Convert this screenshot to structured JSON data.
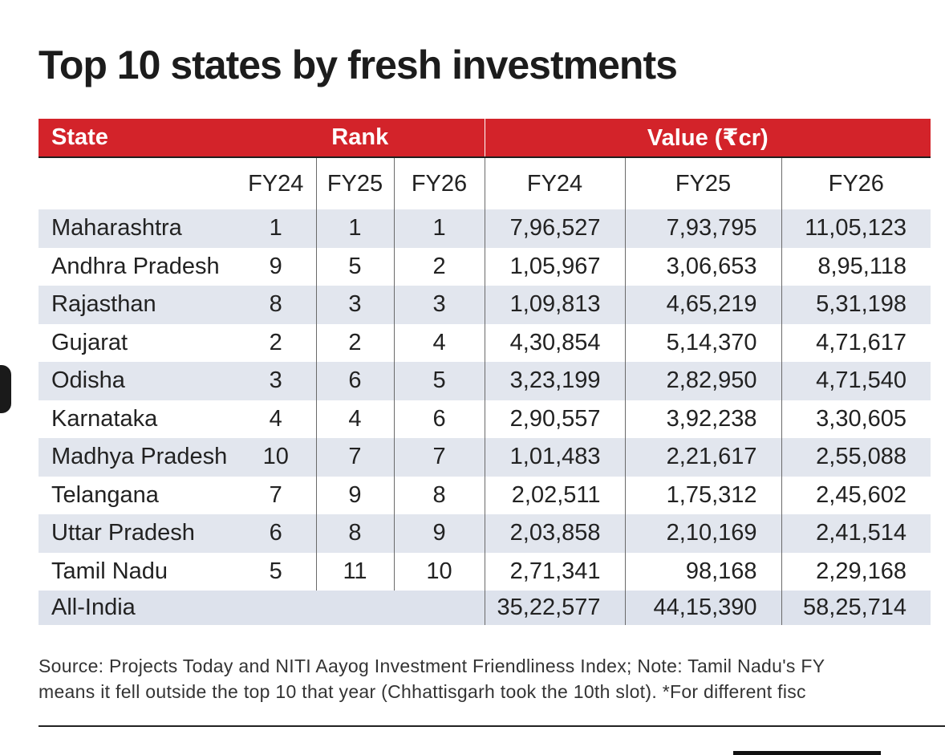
{
  "title": "Top 10 states by fresh investments",
  "table": {
    "header": {
      "state": "State",
      "rank": "Rank",
      "value": "Value (₹cr)"
    },
    "subheader": [
      "FY24",
      "FY25",
      "FY26",
      "FY24",
      "FY25",
      "FY26"
    ],
    "rows": [
      {
        "state": "Maharashtra",
        "rank": [
          "1",
          "1",
          "1"
        ],
        "value": [
          "7,96,527",
          "7,93,795",
          "11,05,123"
        ]
      },
      {
        "state": "Andhra Pradesh",
        "rank": [
          "9",
          "5",
          "2"
        ],
        "value": [
          "1,05,967",
          "3,06,653",
          "8,95,118"
        ]
      },
      {
        "state": "Rajasthan",
        "rank": [
          "8",
          "3",
          "3"
        ],
        "value": [
          "1,09,813",
          "4,65,219",
          "5,31,198"
        ]
      },
      {
        "state": "Gujarat",
        "rank": [
          "2",
          "2",
          "4"
        ],
        "value": [
          "4,30,854",
          "5,14,370",
          "4,71,617"
        ]
      },
      {
        "state": "Odisha",
        "rank": [
          "3",
          "6",
          "5"
        ],
        "value": [
          "3,23,199",
          "2,82,950",
          "4,71,540"
        ]
      },
      {
        "state": "Karnataka",
        "rank": [
          "4",
          "4",
          "6"
        ],
        "value": [
          "2,90,557",
          "3,92,238",
          "3,30,605"
        ]
      },
      {
        "state": "Madhya Pradesh",
        "rank": [
          "10",
          "7",
          "7"
        ],
        "value": [
          "1,01,483",
          "2,21,617",
          "2,55,088"
        ]
      },
      {
        "state": "Telangana",
        "rank": [
          "7",
          "9",
          "8"
        ],
        "value": [
          "2,02,511",
          "1,75,312",
          "2,45,602"
        ]
      },
      {
        "state": "Uttar Pradesh",
        "rank": [
          "6",
          "8",
          "9"
        ],
        "value": [
          "2,03,858",
          "2,10,169",
          "2,41,514"
        ]
      },
      {
        "state": "Tamil Nadu",
        "rank": [
          "5",
          "11",
          "10"
        ],
        "value": [
          "2,71,341",
          "98,168",
          "2,29,168"
        ]
      }
    ],
    "total": {
      "state": "All-India",
      "value": [
        "35,22,577",
        "44,15,390",
        "58,25,714"
      ]
    }
  },
  "footnote": {
    "line1": "Source: Projects Today and NITI Aayog Investment Friendliness Index; Note: Tamil Nadu's FY",
    "line2": "means it fell outside the top 10 that year (Chhattisgarh took the 10th slot). *For different fisc"
  },
  "colors": {
    "header_bg": "#d3232a",
    "band": "#e2e6ee",
    "total_bg": "#dde2ec"
  }
}
